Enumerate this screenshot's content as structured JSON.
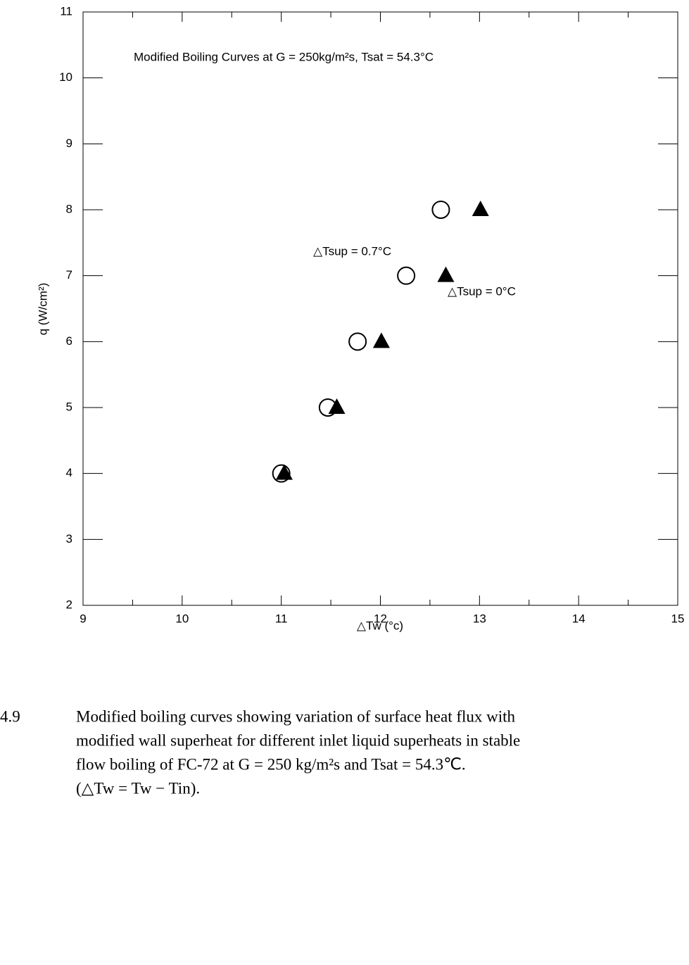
{
  "chart_data": {
    "type": "scatter",
    "title": "Modified Boiling Curves at G = 250kg/m²s, Tsat = 54.3°C",
    "x_label": "△Tw (°c)",
    "y_label": "q (W/cm²)",
    "xlim": [
      9,
      15
    ],
    "xticks": [
      9,
      10,
      11,
      12,
      13,
      14,
      15
    ],
    "ylim": [
      2,
      11
    ],
    "yticks": [
      2,
      3,
      4,
      5,
      6,
      7,
      8,
      9,
      10,
      11
    ],
    "series": [
      {
        "name": "△Tsup = 0.7°C",
        "marker": "circle",
        "color": "#000000",
        "x": [
          11.0,
          11.47,
          11.77,
          12.26,
          12.61
        ],
        "values": [
          4,
          5,
          6,
          7,
          8
        ]
      },
      {
        "name": "△Tsup = 0°C",
        "marker": "triangle",
        "color": "#000000",
        "x": [
          11.03,
          11.56,
          12.01,
          12.66,
          13.01
        ],
        "values": [
          4,
          5,
          6,
          7,
          8
        ]
      }
    ]
  },
  "caption": {
    "number": "4.9",
    "lines": [
      "Modified boiling curves showing variation of surface heat flux with",
      "modified wall superheat for different inlet liquid superheats in stable",
      "flow boiling of FC-72 at G = 250 kg/m²s and Tsat = 54.3℃.",
      "(△Tw = Tw − Tin)."
    ]
  }
}
